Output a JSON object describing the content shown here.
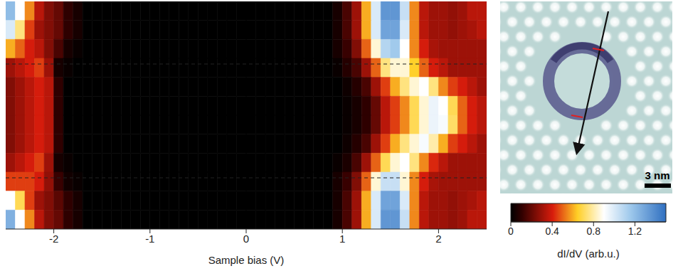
{
  "chart_data": {
    "type": "heatmap",
    "x_label": "Sample bias (V)",
    "x": [
      -2.45,
      -2.35,
      -2.25,
      -2.15,
      -2.05,
      -1.95,
      -1.85,
      -1.75,
      -1.65,
      -1.55,
      -1.45,
      -1.35,
      -1.25,
      -1.15,
      -1.05,
      -0.95,
      -0.85,
      -0.75,
      -0.65,
      -0.55,
      -0.45,
      -0.35,
      -0.25,
      -0.15,
      -0.05,
      0.05,
      0.15,
      0.25,
      0.35,
      0.45,
      0.55,
      0.65,
      0.75,
      0.85,
      0.95,
      1.05,
      1.15,
      1.25,
      1.35,
      1.45,
      1.55,
      1.65,
      1.75,
      1.85,
      1.95,
      2.05,
      2.15,
      2.25,
      2.35,
      2.45
    ],
    "y": [
      11.5,
      10.5,
      9.5,
      8.5,
      7.5,
      6.5,
      5.5,
      4.5,
      3.5,
      2.5,
      1.5,
      0.5
    ],
    "xlim": [
      -2.5,
      2.5
    ],
    "xticks": [
      -2,
      -1,
      0,
      1,
      2
    ],
    "ylim": [
      0,
      12
    ],
    "tick_labels": "x",
    "hlines": [
      8.7,
      2.7
    ],
    "cells": [
      [
        1.2,
        0.9,
        0.55,
        0.35,
        0.25,
        0.2,
        0.1,
        0.05,
        0,
        0,
        0,
        0,
        0,
        0,
        0,
        0,
        0,
        0,
        0,
        0,
        0,
        0,
        0,
        0,
        0,
        0,
        0,
        0,
        0,
        0,
        0,
        0,
        0,
        0,
        0.05,
        0.15,
        0.3,
        0.6,
        1.0,
        1.35,
        1.35,
        1.05,
        0.55,
        0.35,
        0.3,
        0.3,
        0.28,
        0.3,
        0.35,
        0.35
      ],
      [
        1.0,
        0.75,
        0.45,
        0.3,
        0.25,
        0.2,
        0.1,
        0.05,
        0,
        0,
        0,
        0,
        0,
        0,
        0,
        0,
        0,
        0,
        0,
        0,
        0,
        0,
        0,
        0,
        0,
        0,
        0,
        0,
        0,
        0,
        0,
        0,
        0,
        0,
        0.05,
        0.15,
        0.3,
        0.6,
        1.0,
        1.3,
        1.3,
        1.0,
        0.55,
        0.35,
        0.3,
        0.3,
        0.28,
        0.3,
        0.32,
        0.35
      ],
      [
        0.6,
        0.5,
        0.4,
        0.35,
        0.25,
        0.15,
        0.05,
        0.02,
        0,
        0,
        0,
        0,
        0,
        0,
        0,
        0,
        0,
        0,
        0,
        0,
        0,
        0,
        0,
        0,
        0,
        0,
        0,
        0,
        0,
        0,
        0,
        0,
        0,
        0,
        0.05,
        0.12,
        0.25,
        0.5,
        0.85,
        1.1,
        1.15,
        0.9,
        0.55,
        0.4,
        0.32,
        0.3,
        0.3,
        0.3,
        0.3,
        0.3
      ],
      [
        0.3,
        0.35,
        0.4,
        0.45,
        0.3,
        0.05,
        0.02,
        0,
        0,
        0,
        0,
        0,
        0,
        0,
        0,
        0,
        0,
        0,
        0,
        0,
        0,
        0,
        0,
        0,
        0,
        0,
        0,
        0,
        0,
        0,
        0,
        0,
        0,
        0,
        0.02,
        0.08,
        0.15,
        0.3,
        0.5,
        0.75,
        0.85,
        0.85,
        0.65,
        0.5,
        0.4,
        0.35,
        0.3,
        0.3,
        0.3,
        0.3
      ],
      [
        0.25,
        0.3,
        0.35,
        0.4,
        0.35,
        0.1,
        0,
        0,
        0,
        0,
        0,
        0,
        0,
        0,
        0,
        0,
        0,
        0,
        0,
        0,
        0,
        0,
        0,
        0,
        0,
        0,
        0,
        0,
        0,
        0,
        0,
        0,
        0,
        0,
        0,
        0.03,
        0.08,
        0.15,
        0.3,
        0.45,
        0.6,
        0.75,
        0.85,
        0.9,
        0.75,
        0.55,
        0.45,
        0.4,
        0.35,
        0.3
      ],
      [
        0.25,
        0.3,
        0.35,
        0.4,
        0.35,
        0.1,
        0,
        0,
        0,
        0,
        0,
        0,
        0,
        0,
        0,
        0,
        0,
        0,
        0,
        0,
        0,
        0,
        0,
        0,
        0,
        0,
        0,
        0,
        0,
        0,
        0,
        0,
        0,
        0,
        0,
        0.02,
        0.05,
        0.1,
        0.2,
        0.35,
        0.45,
        0.55,
        0.7,
        0.85,
        0.95,
        0.9,
        0.7,
        0.5,
        0.4,
        0.35
      ],
      [
        0.25,
        0.3,
        0.35,
        0.4,
        0.35,
        0.1,
        0,
        0,
        0,
        0,
        0,
        0,
        0,
        0,
        0,
        0,
        0,
        0,
        0,
        0,
        0,
        0,
        0,
        0,
        0,
        0,
        0,
        0,
        0,
        0,
        0,
        0,
        0,
        0,
        0,
        0.02,
        0.05,
        0.1,
        0.2,
        0.35,
        0.45,
        0.55,
        0.7,
        0.85,
        0.95,
        0.92,
        0.72,
        0.5,
        0.4,
        0.35
      ],
      [
        0.25,
        0.3,
        0.35,
        0.4,
        0.35,
        0.1,
        0,
        0,
        0,
        0,
        0,
        0,
        0,
        0,
        0,
        0,
        0,
        0,
        0,
        0,
        0,
        0,
        0,
        0,
        0,
        0,
        0,
        0,
        0,
        0,
        0,
        0,
        0,
        0,
        0,
        0.03,
        0.08,
        0.15,
        0.3,
        0.45,
        0.6,
        0.75,
        0.85,
        0.92,
        0.8,
        0.6,
        0.45,
        0.4,
        0.35,
        0.3
      ],
      [
        0.3,
        0.35,
        0.4,
        0.45,
        0.3,
        0.05,
        0.02,
        0,
        0,
        0,
        0,
        0,
        0,
        0,
        0,
        0,
        0,
        0,
        0,
        0,
        0,
        0,
        0,
        0,
        0,
        0,
        0,
        0,
        0,
        0,
        0,
        0,
        0,
        0,
        0.02,
        0.06,
        0.15,
        0.3,
        0.5,
        0.7,
        0.85,
        0.9,
        0.75,
        0.55,
        0.42,
        0.35,
        0.3,
        0.3,
        0.3,
        0.3
      ],
      [
        0.45,
        0.45,
        0.45,
        0.4,
        0.28,
        0.12,
        0.04,
        0.02,
        0,
        0,
        0,
        0,
        0,
        0,
        0,
        0,
        0,
        0,
        0,
        0,
        0,
        0,
        0,
        0,
        0,
        0,
        0,
        0,
        0,
        0,
        0,
        0,
        0,
        0,
        0.05,
        0.12,
        0.25,
        0.5,
        0.85,
        1.05,
        1.05,
        0.85,
        0.55,
        0.4,
        0.32,
        0.3,
        0.3,
        0.3,
        0.3,
        0.3
      ],
      [
        0.9,
        0.7,
        0.45,
        0.3,
        0.25,
        0.18,
        0.1,
        0.05,
        0,
        0,
        0,
        0,
        0,
        0,
        0,
        0,
        0,
        0,
        0,
        0,
        0,
        0,
        0,
        0,
        0,
        0,
        0,
        0,
        0,
        0,
        0,
        0,
        0,
        0,
        0.05,
        0.15,
        0.3,
        0.6,
        1.0,
        1.3,
        1.3,
        1.0,
        0.55,
        0.35,
        0.3,
        0.3,
        0.28,
        0.3,
        0.32,
        0.35
      ],
      [
        1.25,
        0.9,
        0.55,
        0.35,
        0.25,
        0.2,
        0.1,
        0.05,
        0,
        0,
        0,
        0,
        0,
        0,
        0,
        0,
        0,
        0,
        0,
        0,
        0,
        0,
        0,
        0,
        0,
        0,
        0,
        0,
        0,
        0,
        0,
        0,
        0,
        0,
        0.05,
        0.15,
        0.3,
        0.6,
        1.0,
        1.35,
        1.35,
        1.05,
        0.55,
        0.35,
        0.3,
        0.3,
        0.28,
        0.3,
        0.35,
        0.35
      ]
    ],
    "colorbar": {
      "label": "dI/dV (arb.u.)",
      "range": [
        0,
        1.5
      ],
      "ticks": [
        0,
        0.4,
        0.8,
        1.2
      ]
    }
  },
  "image": {
    "scale_bar": "3 nm"
  }
}
